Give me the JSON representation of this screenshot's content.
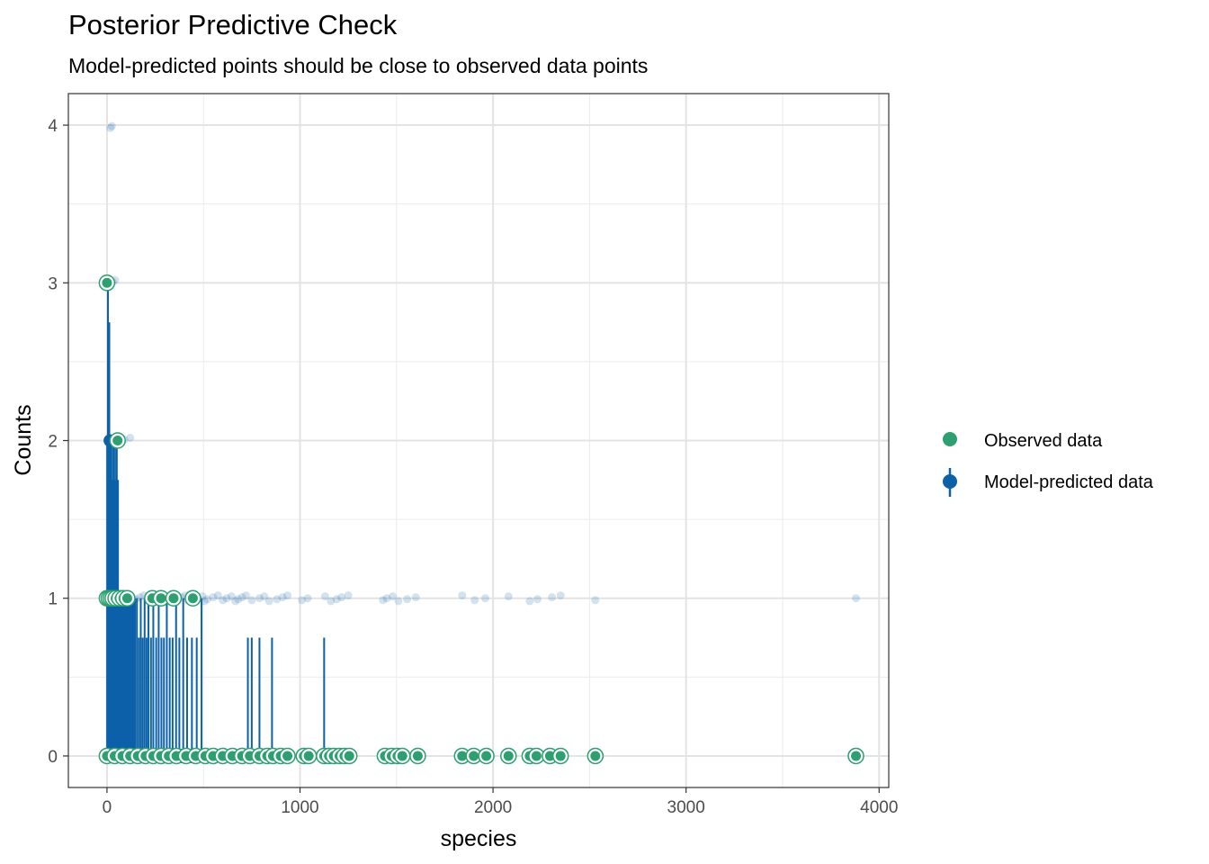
{
  "chart_data": {
    "type": "scatter",
    "title": "Posterior Predictive Check",
    "subtitle": "Model-predicted points should be close to observed data points",
    "xlabel": "species",
    "ylabel": "Counts",
    "xlim": [
      -200,
      4050
    ],
    "ylim": [
      -0.2,
      4.2
    ],
    "x_ticks": [
      0,
      1000,
      2000,
      3000,
      4000
    ],
    "y_ticks": [
      0,
      1,
      2,
      3,
      4
    ],
    "grid": true,
    "legend_position": "right",
    "colors": {
      "observed": "#2e9f70",
      "predicted": "#0c61a8"
    },
    "series": [
      {
        "name": "Observed data",
        "type": "points",
        "points": [
          {
            "x": 0,
            "y": 3
          },
          {
            "x": 55,
            "y": 2
          },
          {
            "x": 0,
            "y": 1
          },
          {
            "x": 10,
            "y": 1
          },
          {
            "x": 20,
            "y": 1
          },
          {
            "x": 30,
            "y": 1
          },
          {
            "x": 45,
            "y": 1
          },
          {
            "x": 65,
            "y": 1
          },
          {
            "x": 85,
            "y": 1
          },
          {
            "x": 105,
            "y": 1
          },
          {
            "x": 235,
            "y": 1
          },
          {
            "x": 280,
            "y": 1
          },
          {
            "x": 345,
            "y": 1
          },
          {
            "x": 445,
            "y": 1
          },
          {
            "x": 0,
            "y": 0
          },
          {
            "x": 40,
            "y": 0
          },
          {
            "x": 80,
            "y": 0
          },
          {
            "x": 120,
            "y": 0
          },
          {
            "x": 160,
            "y": 0
          },
          {
            "x": 200,
            "y": 0
          },
          {
            "x": 240,
            "y": 0
          },
          {
            "x": 280,
            "y": 0
          },
          {
            "x": 320,
            "y": 0
          },
          {
            "x": 360,
            "y": 0
          },
          {
            "x": 410,
            "y": 0
          },
          {
            "x": 460,
            "y": 0
          },
          {
            "x": 510,
            "y": 0
          },
          {
            "x": 550,
            "y": 0
          },
          {
            "x": 600,
            "y": 0
          },
          {
            "x": 650,
            "y": 0
          },
          {
            "x": 700,
            "y": 0
          },
          {
            "x": 740,
            "y": 0
          },
          {
            "x": 790,
            "y": 0
          },
          {
            "x": 830,
            "y": 0
          },
          {
            "x": 860,
            "y": 0
          },
          {
            "x": 900,
            "y": 0
          },
          {
            "x": 935,
            "y": 0
          },
          {
            "x": 1020,
            "y": 0
          },
          {
            "x": 1045,
            "y": 0
          },
          {
            "x": 1125,
            "y": 0
          },
          {
            "x": 1150,
            "y": 0
          },
          {
            "x": 1175,
            "y": 0
          },
          {
            "x": 1205,
            "y": 0
          },
          {
            "x": 1230,
            "y": 0
          },
          {
            "x": 1255,
            "y": 0
          },
          {
            "x": 1440,
            "y": 0
          },
          {
            "x": 1475,
            "y": 0
          },
          {
            "x": 1505,
            "y": 0
          },
          {
            "x": 1530,
            "y": 0
          },
          {
            "x": 1610,
            "y": 0
          },
          {
            "x": 1840,
            "y": 0
          },
          {
            "x": 1900,
            "y": 0
          },
          {
            "x": 1965,
            "y": 0
          },
          {
            "x": 2080,
            "y": 0
          },
          {
            "x": 2190,
            "y": 0
          },
          {
            "x": 2225,
            "y": 0
          },
          {
            "x": 2295,
            "y": 0
          },
          {
            "x": 2350,
            "y": 0
          },
          {
            "x": 2530,
            "y": 0
          },
          {
            "x": 3880,
            "y": 0
          }
        ]
      },
      {
        "name": "Model-predicted data",
        "type": "intervals",
        "intervals": [
          {
            "x": 5,
            "ymin": 0,
            "ymax": 3.0
          },
          {
            "x": 12,
            "ymin": 0,
            "ymax": 2.75
          },
          {
            "x": 20,
            "ymin": 0,
            "ymax": 2.0
          },
          {
            "x": 27,
            "ymin": 0,
            "ymax": 1.75
          },
          {
            "x": 35,
            "ymin": 0,
            "ymax": 2.0
          },
          {
            "x": 42,
            "ymin": 0,
            "ymax": 1.75
          },
          {
            "x": 50,
            "ymin": 0,
            "ymax": 2.0
          },
          {
            "x": 57,
            "ymin": 0,
            "ymax": 1.75
          },
          {
            "x": 64,
            "ymin": 0,
            "ymax": 1.0
          },
          {
            "x": 72,
            "ymin": 0,
            "ymax": 1.0
          },
          {
            "x": 80,
            "ymin": 0,
            "ymax": 1.0
          },
          {
            "x": 88,
            "ymin": 0,
            "ymax": 1.0
          },
          {
            "x": 96,
            "ymin": 0,
            "ymax": 1.0
          },
          {
            "x": 104,
            "ymin": 0,
            "ymax": 1.0
          },
          {
            "x": 112,
            "ymin": 0,
            "ymax": 1.0
          },
          {
            "x": 120,
            "ymin": 0,
            "ymax": 1.0
          },
          {
            "x": 128,
            "ymin": 0,
            "ymax": 1.0
          },
          {
            "x": 136,
            "ymin": 0,
            "ymax": 1.0
          },
          {
            "x": 145,
            "ymin": 0,
            "ymax": 1.0
          },
          {
            "x": 155,
            "ymin": 0,
            "ymax": 1.0
          },
          {
            "x": 165,
            "ymin": 0,
            "ymax": 0.75
          },
          {
            "x": 175,
            "ymin": 0,
            "ymax": 1.0
          },
          {
            "x": 185,
            "ymin": 0,
            "ymax": 0.75
          },
          {
            "x": 195,
            "ymin": 0,
            "ymax": 1.0
          },
          {
            "x": 205,
            "ymin": 0,
            "ymax": 0.75
          },
          {
            "x": 215,
            "ymin": 0,
            "ymax": 1.0
          },
          {
            "x": 228,
            "ymin": 0,
            "ymax": 0.75
          },
          {
            "x": 240,
            "ymin": 0,
            "ymax": 1.0
          },
          {
            "x": 255,
            "ymin": 0,
            "ymax": 0.75
          },
          {
            "x": 268,
            "ymin": 0,
            "ymax": 1.0
          },
          {
            "x": 282,
            "ymin": 0,
            "ymax": 0.75
          },
          {
            "x": 295,
            "ymin": 0,
            "ymax": 0.75
          },
          {
            "x": 310,
            "ymin": 0,
            "ymax": 1.0
          },
          {
            "x": 325,
            "ymin": 0,
            "ymax": 0.75
          },
          {
            "x": 340,
            "ymin": 0,
            "ymax": 0.75
          },
          {
            "x": 358,
            "ymin": 0,
            "ymax": 1.0
          },
          {
            "x": 375,
            "ymin": 0,
            "ymax": 0.75
          },
          {
            "x": 395,
            "ymin": 0,
            "ymax": 1.0
          },
          {
            "x": 415,
            "ymin": 0,
            "ymax": 0.75
          },
          {
            "x": 440,
            "ymin": 0,
            "ymax": 0.75
          },
          {
            "x": 465,
            "ymin": 0,
            "ymax": 0.75
          },
          {
            "x": 490,
            "ymin": 0,
            "ymax": 1.0
          },
          {
            "x": 730,
            "ymin": 0,
            "ymax": 0.75
          },
          {
            "x": 750,
            "ymin": 0,
            "ymax": 0.75
          },
          {
            "x": 790,
            "ymin": 0,
            "ymax": 0.75
          },
          {
            "x": 855,
            "ymin": 0,
            "ymax": 0.75
          },
          {
            "x": 1125,
            "ymin": 0,
            "ymax": 0.75
          }
        ]
      },
      {
        "name": "",
        "type": "draws",
        "points": [
          {
            "x": 18,
            "y": 4
          },
          {
            "x": 25,
            "y": 4
          },
          {
            "x": 30,
            "y": 3
          },
          {
            "x": 42,
            "y": 3
          },
          {
            "x": 15,
            "y": 2
          },
          {
            "x": 22,
            "y": 2
          },
          {
            "x": 35,
            "y": 2
          },
          {
            "x": 48,
            "y": 2
          },
          {
            "x": 70,
            "y": 2
          },
          {
            "x": 90,
            "y": 2
          },
          {
            "x": 120,
            "y": 2
          },
          {
            "x": 40,
            "y": 1
          },
          {
            "x": 75,
            "y": 1
          },
          {
            "x": 95,
            "y": 1
          },
          {
            "x": 130,
            "y": 1
          },
          {
            "x": 150,
            "y": 1
          },
          {
            "x": 170,
            "y": 1
          },
          {
            "x": 190,
            "y": 1
          },
          {
            "x": 210,
            "y": 1
          },
          {
            "x": 255,
            "y": 1
          },
          {
            "x": 300,
            "y": 1
          },
          {
            "x": 320,
            "y": 1
          },
          {
            "x": 365,
            "y": 1
          },
          {
            "x": 385,
            "y": 1
          },
          {
            "x": 405,
            "y": 1
          },
          {
            "x": 420,
            "y": 1
          },
          {
            "x": 470,
            "y": 1
          },
          {
            "x": 495,
            "y": 1
          },
          {
            "x": 505,
            "y": 1
          },
          {
            "x": 520,
            "y": 1
          },
          {
            "x": 550,
            "y": 1
          },
          {
            "x": 575,
            "y": 1
          },
          {
            "x": 600,
            "y": 1
          },
          {
            "x": 620,
            "y": 1
          },
          {
            "x": 645,
            "y": 1
          },
          {
            "x": 665,
            "y": 1
          },
          {
            "x": 680,
            "y": 1
          },
          {
            "x": 700,
            "y": 1
          },
          {
            "x": 720,
            "y": 1
          },
          {
            "x": 750,
            "y": 1
          },
          {
            "x": 790,
            "y": 1
          },
          {
            "x": 815,
            "y": 1
          },
          {
            "x": 840,
            "y": 1
          },
          {
            "x": 880,
            "y": 1
          },
          {
            "x": 910,
            "y": 1
          },
          {
            "x": 935,
            "y": 1
          },
          {
            "x": 1010,
            "y": 1
          },
          {
            "x": 1040,
            "y": 1
          },
          {
            "x": 1130,
            "y": 1
          },
          {
            "x": 1160,
            "y": 1
          },
          {
            "x": 1190,
            "y": 1
          },
          {
            "x": 1215,
            "y": 1
          },
          {
            "x": 1250,
            "y": 1
          },
          {
            "x": 1430,
            "y": 1
          },
          {
            "x": 1450,
            "y": 1
          },
          {
            "x": 1480,
            "y": 1
          },
          {
            "x": 1510,
            "y": 1
          },
          {
            "x": 1555,
            "y": 1
          },
          {
            "x": 1600,
            "y": 1
          },
          {
            "x": 1840,
            "y": 1
          },
          {
            "x": 1905,
            "y": 1
          },
          {
            "x": 1960,
            "y": 1
          },
          {
            "x": 2080,
            "y": 1
          },
          {
            "x": 2190,
            "y": 1
          },
          {
            "x": 2230,
            "y": 1
          },
          {
            "x": 2305,
            "y": 1
          },
          {
            "x": 2350,
            "y": 1
          },
          {
            "x": 2530,
            "y": 1
          },
          {
            "x": 3880,
            "y": 1
          }
        ]
      }
    ]
  },
  "legend": {
    "items": [
      {
        "label": "Observed data"
      },
      {
        "label": "Model-predicted data"
      }
    ]
  }
}
